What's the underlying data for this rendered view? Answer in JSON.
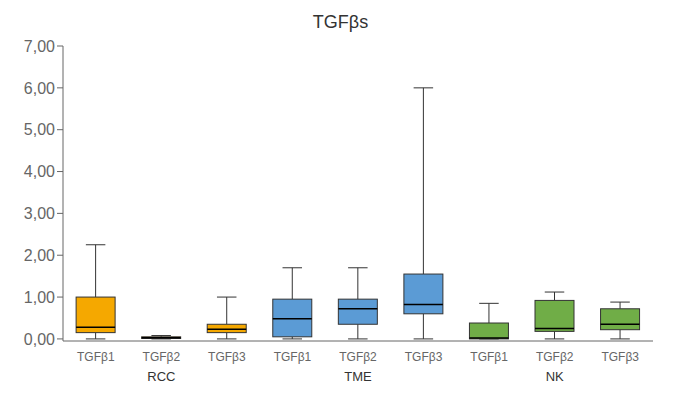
{
  "chart_data": {
    "type": "box",
    "title": "TGFβs",
    "categories": [
      "TGFβ1",
      "TGFβ2",
      "TGFβ3"
    ],
    "series": [
      {
        "name": "RCC",
        "color": "#F5A800",
        "values": [
          {
            "whislo": 0.0,
            "q1": 0.15,
            "med": 0.28,
            "q3": 1.0,
            "whishi": 2.25
          },
          {
            "whislo": 0.0,
            "q1": 0.01,
            "med": 0.03,
            "q3": 0.05,
            "whishi": 0.08
          },
          {
            "whislo": 0.0,
            "q1": 0.15,
            "med": 0.23,
            "q3": 0.35,
            "whishi": 1.0
          }
        ]
      },
      {
        "name": "TME",
        "color": "#5B9BD5",
        "values": [
          {
            "whislo": 0.0,
            "q1": 0.05,
            "med": 0.48,
            "q3": 0.95,
            "whishi": 1.7
          },
          {
            "whislo": 0.0,
            "q1": 0.35,
            "med": 0.72,
            "q3": 0.95,
            "whishi": 1.7
          },
          {
            "whislo": 0.0,
            "q1": 0.6,
            "med": 0.82,
            "q3": 1.55,
            "whishi": 6.0
          }
        ]
      },
      {
        "name": "NK",
        "color": "#70AD47",
        "values": [
          {
            "whislo": 0.0,
            "q1": 0.0,
            "med": 0.02,
            "q3": 0.38,
            "whishi": 0.85
          },
          {
            "whislo": 0.0,
            "q1": 0.18,
            "med": 0.25,
            "q3": 0.92,
            "whishi": 1.12
          },
          {
            "whislo": 0.0,
            "q1": 0.22,
            "med": 0.35,
            "q3": 0.72,
            "whishi": 0.88
          }
        ]
      }
    ],
    "ylim": [
      -0.05,
      7.0
    ],
    "yticks": [
      {
        "value": 0.0,
        "label": "0,00"
      },
      {
        "value": 1.0,
        "label": "1,00"
      },
      {
        "value": 2.0,
        "label": "2,00"
      },
      {
        "value": 3.0,
        "label": "3,00"
      },
      {
        "value": 4.0,
        "label": "4,00"
      },
      {
        "value": 5.0,
        "label": "5,00"
      },
      {
        "value": 6.0,
        "label": "6,00"
      },
      {
        "value": 7.0,
        "label": "7,00"
      }
    ],
    "grid": false
  }
}
